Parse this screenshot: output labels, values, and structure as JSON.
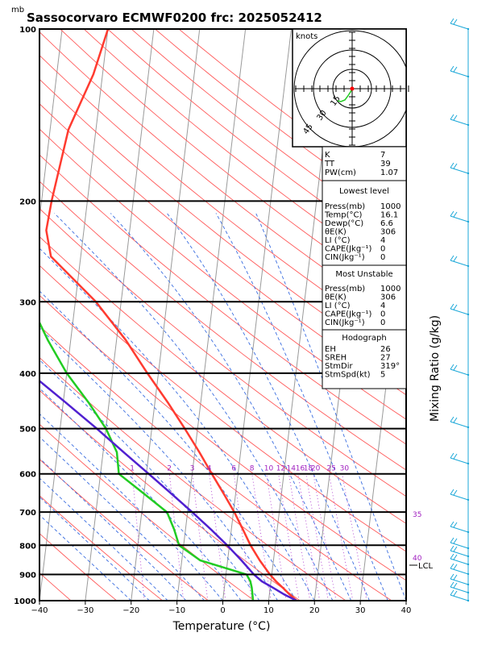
{
  "header": {
    "unit_mb": "mb",
    "title": "Sassocorvaro ECMWF0200 frc: 2025052412"
  },
  "chart_data": {
    "type": "line",
    "title": "Sassocorvaro ECMWF0200 frc: 2025052412",
    "xlabel": "Temperature (°C)",
    "ylabel_right": "Mixing Ratio (g/kg)",
    "x_ticks": [
      "−40",
      "−30",
      "−20",
      "−10",
      "0",
      "10",
      "20",
      "30",
      "40"
    ],
    "pressure_levels": [
      "100",
      "200",
      "300",
      "400",
      "500",
      "600",
      "700",
      "800",
      "900",
      "1000"
    ],
    "xlim": [
      -40,
      40
    ],
    "ylim_hPa": [
      1000,
      100
    ],
    "y_scale": "log",
    "series": [
      {
        "key": "temperature",
        "color": "#ff3b30",
        "points": [
          [
            1000,
            16.1
          ],
          [
            975,
            14.4
          ],
          [
            950,
            12.8
          ],
          [
            925,
            11.1
          ],
          [
            900,
            9.6
          ],
          [
            850,
            7.0
          ],
          [
            800,
            4.6
          ],
          [
            750,
            2.5
          ],
          [
            700,
            0.2
          ],
          [
            650,
            -2.6
          ],
          [
            600,
            -5.7
          ],
          [
            550,
            -9.0
          ],
          [
            500,
            -12.8
          ],
          [
            450,
            -17.2
          ],
          [
            400,
            -22.4
          ],
          [
            350,
            -28.0
          ],
          [
            300,
            -35.5
          ],
          [
            250,
            -46.5
          ],
          [
            225,
            -48.2
          ],
          [
            200,
            -47.8
          ],
          [
            150,
            -46.0
          ],
          [
            120,
            -42.0
          ],
          [
            100,
            -40.0
          ]
        ]
      },
      {
        "key": "dewpoint",
        "color": "#22cc22",
        "points": [
          [
            1000,
            6.6
          ],
          [
            950,
            6.0
          ],
          [
            925,
            5.5
          ],
          [
            900,
            4.5
          ],
          [
            850,
            -6.0
          ],
          [
            800,
            -11.0
          ],
          [
            750,
            -12.5
          ],
          [
            700,
            -14.5
          ],
          [
            650,
            -20.0
          ],
          [
            600,
            -26.0
          ],
          [
            550,
            -27.0
          ],
          [
            500,
            -30.0
          ],
          [
            450,
            -34.5
          ],
          [
            400,
            -40.0
          ],
          [
            350,
            -45.0
          ],
          [
            300,
            -50.0
          ],
          [
            250,
            -58.0
          ],
          [
            200,
            -63.0
          ],
          [
            150,
            -70.0
          ],
          [
            100,
            -78.0
          ]
        ]
      },
      {
        "key": "parcel",
        "color": "#5020d0",
        "points": [
          [
            1000,
            16.1
          ],
          [
            975,
            13.2
          ],
          [
            950,
            10.7
          ],
          [
            925,
            8.0
          ],
          [
            900,
            6.1
          ],
          [
            850,
            3.0
          ],
          [
            800,
            -0.5
          ],
          [
            750,
            -4.5
          ],
          [
            700,
            -9.0
          ],
          [
            650,
            -14.0
          ],
          [
            600,
            -19.5
          ],
          [
            550,
            -25.5
          ],
          [
            500,
            -32.0
          ],
          [
            450,
            -39.5
          ],
          [
            400,
            -48.0
          ],
          [
            350,
            -57.0
          ],
          [
            300,
            -67.0
          ],
          [
            250,
            -78.0
          ],
          [
            200,
            -90.0
          ],
          [
            150,
            -104.0
          ],
          [
            130,
            -110.0
          ]
        ]
      }
    ],
    "mixing_ratio_labels": [
      "1",
      "2",
      "3",
      "4",
      "6",
      "8",
      "10",
      "12",
      "14",
      "16",
      "18",
      "20",
      "25",
      "30"
    ],
    "right_side_labels": {
      "t35": "35",
      "t40": "40"
    },
    "lcl_label": "LCL",
    "hodograph": {
      "unit": "knots",
      "ring_labels": [
        "15",
        "30",
        "45"
      ]
    }
  },
  "indices": {
    "top": [
      {
        "label": "K",
        "value": "7"
      },
      {
        "label": "TT",
        "value": "39"
      },
      {
        "label": "PW(cm)",
        "value": "1.07"
      }
    ],
    "lowest": {
      "title": "Lowest level",
      "rows": [
        {
          "label": "Press(mb)",
          "value": "1000"
        },
        {
          "label": "Temp(°C)",
          "value": "16.1"
        },
        {
          "label": "Dewp(°C)",
          "value": "6.6"
        },
        {
          "label": "θE(K)",
          "value": "306"
        },
        {
          "label": "LI (°C)",
          "value": "4"
        },
        {
          "label": "CAPE(Jkg⁻¹)",
          "value": "0"
        },
        {
          "label": "CIN(Jkg⁻¹)",
          "value": "0"
        }
      ]
    },
    "unstable": {
      "title": "Most Unstable",
      "rows": [
        {
          "label": "Press(mb)",
          "value": "1000"
        },
        {
          "label": "θE(K)",
          "value": "306"
        },
        {
          "label": "LI (°C)",
          "value": "4"
        },
        {
          "label": "CAPE(Jkg⁻¹)",
          "value": "0"
        },
        {
          "label": "CIN(Jkg⁻¹)",
          "value": "0"
        }
      ]
    },
    "hodo": {
      "title": "Hodograph",
      "rows": [
        {
          "label": "EH",
          "value": "26"
        },
        {
          "label": "SREH",
          "value": "27"
        },
        {
          "label": "StmDir",
          "value": "319°"
        },
        {
          "label": "StmSpd(kt)",
          "value": "5"
        }
      ]
    }
  }
}
